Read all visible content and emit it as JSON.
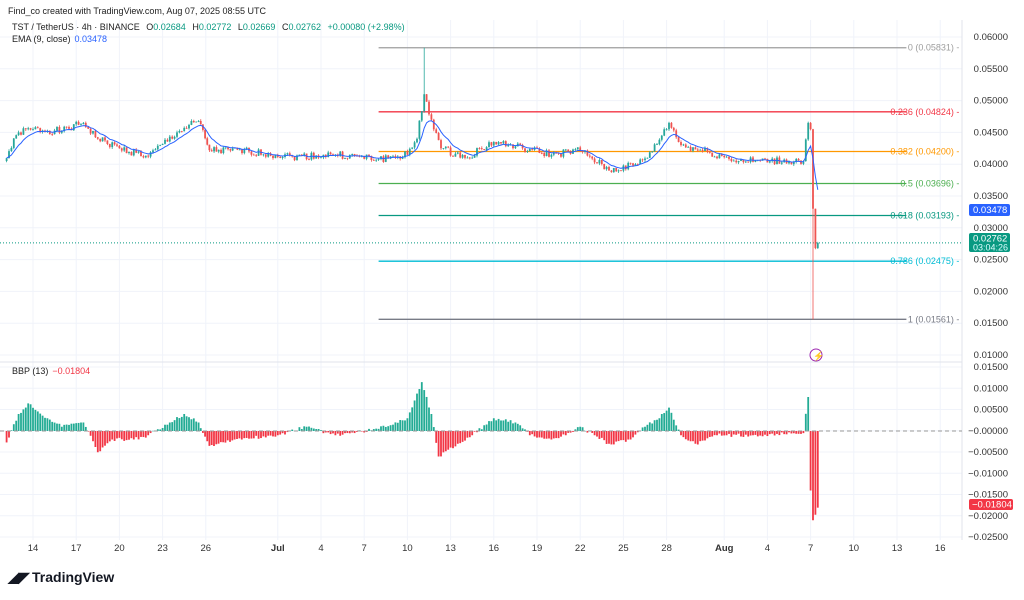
{
  "attribution": "Find_co created with TradingView.com, Aug 07, 2025 08:55 UTC",
  "logo": "TradingView",
  "legend": {
    "symbol": "TST / TetherUS · 4h · BINANCE",
    "o_label": "O",
    "o": "0.02684",
    "h_label": "H",
    "h": "0.02772",
    "l_label": "L",
    "l": "0.02669",
    "c_label": "C",
    "c": "0.02762",
    "change": "+0.00080 (+2.98%)",
    "ema_label": "EMA (9, close)",
    "ema_value": "0.03478",
    "bbp_label": "BBP (13)",
    "bbp_value": "−0.01804"
  },
  "colors": {
    "up": "#26a69a",
    "down": "#ef5350",
    "ema": "#2962ff",
    "bbp_up": "#22ab94",
    "bbp_down": "#f23645"
  },
  "chart_data": [
    {
      "type": "candlestick",
      "title": "TST / TetherUS · 4h · BINANCE",
      "ylim": [
        0.01,
        0.06
      ],
      "y_ticks": [
        "0.06000",
        "0.05500",
        "0.05000",
        "0.04500",
        "0.04000",
        "0.03500",
        "0.03000",
        "0.02500",
        "0.02000",
        "0.01500",
        "0.01000"
      ],
      "x_ticks": [
        {
          "label": "14",
          "date": "2025-06-14"
        },
        {
          "label": "17",
          "date": "2025-06-17"
        },
        {
          "label": "20",
          "date": "2025-06-20"
        },
        {
          "label": "23",
          "date": "2025-06-23"
        },
        {
          "label": "26",
          "date": "2025-06-26"
        },
        {
          "label": "Jul",
          "date": "2025-07-01"
        },
        {
          "label": "4",
          "date": "2025-07-04"
        },
        {
          "label": "7",
          "date": "2025-07-07"
        },
        {
          "label": "10",
          "date": "2025-07-10"
        },
        {
          "label": "13",
          "date": "2025-07-13"
        },
        {
          "label": "16",
          "date": "2025-07-16"
        },
        {
          "label": "19",
          "date": "2025-07-19"
        },
        {
          "label": "22",
          "date": "2025-07-22"
        },
        {
          "label": "25",
          "date": "2025-07-25"
        },
        {
          "label": "28",
          "date": "2025-07-28"
        },
        {
          "label": "Aug",
          "date": "2025-08-01"
        },
        {
          "label": "4",
          "date": "2025-08-04"
        },
        {
          "label": "7",
          "date": "2025-08-07"
        },
        {
          "label": "10",
          "date": "2025-08-10"
        },
        {
          "label": "13",
          "date": "2025-08-13"
        },
        {
          "label": "16",
          "date": "2025-08-16"
        }
      ],
      "closes": [
        [
          "2025-06-12T00",
          0.0405
        ],
        [
          "2025-06-13T00",
          0.045
        ],
        [
          "2025-06-14T00",
          0.0455
        ],
        [
          "2025-06-16T00",
          0.0452
        ],
        [
          "2025-06-17T12",
          0.0465
        ],
        [
          "2025-06-18T12",
          0.044
        ],
        [
          "2025-06-20T00",
          0.0425
        ],
        [
          "2025-06-22T00",
          0.0412
        ],
        [
          "2025-06-24T00",
          0.045
        ],
        [
          "2025-06-25T12",
          0.0468
        ],
        [
          "2025-06-26T06",
          0.0422
        ],
        [
          "2025-06-29T00",
          0.042
        ],
        [
          "2025-07-02T00",
          0.0412
        ],
        [
          "2025-07-05T00",
          0.0415
        ],
        [
          "2025-07-08T00",
          0.0408
        ],
        [
          "2025-07-10T00",
          0.0415
        ],
        [
          "2025-07-10T16",
          0.044
        ],
        [
          "2025-07-11T04",
          0.051
        ],
        [
          "2025-07-11T16",
          0.047
        ],
        [
          "2025-07-12T08",
          0.0425
        ],
        [
          "2025-07-14T00",
          0.041
        ],
        [
          "2025-07-16T00",
          0.0435
        ],
        [
          "2025-07-18T00",
          0.0425
        ],
        [
          "2025-07-20T00",
          0.0415
        ],
        [
          "2025-07-22T00",
          0.0422
        ],
        [
          "2025-07-24T00",
          0.039
        ],
        [
          "2025-07-26T00",
          0.04
        ],
        [
          "2025-07-27T00",
          0.042
        ],
        [
          "2025-07-28T04",
          0.0465
        ],
        [
          "2025-07-29T00",
          0.043
        ],
        [
          "2025-07-31T00",
          0.0418
        ],
        [
          "2025-08-02T00",
          0.0405
        ],
        [
          "2025-08-06T12",
          0.0405
        ],
        [
          "2025-08-06T20",
          0.0465
        ],
        [
          "2025-08-07T00",
          0.0455
        ],
        [
          "2025-08-07T04",
          0.033
        ],
        [
          "2025-08-07T08",
          0.0268
        ],
        [
          "2025-08-07T12",
          0.02762
        ]
      ],
      "extremes": [
        {
          "date": "2025-07-11",
          "high": 0.05831
        },
        {
          "date": "2025-08-07",
          "low": 0.01561
        }
      ],
      "last_price": "0.02762",
      "countdown": "03:04:26",
      "ema_last": "0.03478",
      "fib": {
        "start": "2025-07-08",
        "end": "2025-08-14",
        "levels": [
          {
            "label": "0 (0.05831)",
            "value": 0.05831,
            "color": "#9e9e9e"
          },
          {
            "label": "0.236 (0.04824)",
            "value": 0.04824,
            "color": "#f23645"
          },
          {
            "label": "0.382 (0.04200)",
            "value": 0.042,
            "color": "#ff9800"
          },
          {
            "label": "0.5 (0.03696)",
            "value": 0.03696,
            "color": "#4caf50"
          },
          {
            "label": "0.618 (0.03193)",
            "value": 0.03193,
            "color": "#089981"
          },
          {
            "label": "0.786 (0.02475)",
            "value": 0.02475,
            "color": "#00bcd4"
          },
          {
            "label": "1 (0.01561)",
            "value": 0.01561,
            "color": "#787b86"
          }
        ]
      }
    },
    {
      "type": "bar",
      "title": "BBP (13)",
      "ylim": [
        -0.025,
        0.015
      ],
      "y_ticks": [
        "0.01500",
        "0.01000",
        "0.00500",
        "−0.00000",
        "−0.00500",
        "−0.01000",
        "−0.01500",
        "−0.02000",
        "−0.02500"
      ],
      "last_value": "−0.01804",
      "values": [
        [
          "2025-06-12T00",
          -0.004
        ],
        [
          "2025-06-13T00",
          0.004
        ],
        [
          "2025-06-13T16",
          0.0065
        ],
        [
          "2025-06-15T00",
          0.003
        ],
        [
          "2025-06-16T00",
          0.001
        ],
        [
          "2025-06-17T12",
          0.002
        ],
        [
          "2025-06-18T12",
          -0.005
        ],
        [
          "2025-06-19T12",
          -0.002
        ],
        [
          "2025-06-21T00",
          -0.002
        ],
        [
          "2025-06-22T00",
          -0.001
        ],
        [
          "2025-06-23T12",
          0.002
        ],
        [
          "2025-06-24T12",
          0.004
        ],
        [
          "2025-06-25T12",
          0.002
        ],
        [
          "2025-06-26T06",
          -0.0035
        ],
        [
          "2025-06-28T00",
          -0.002
        ],
        [
          "2025-07-01T00",
          -0.001
        ],
        [
          "2025-07-03T00",
          0.001
        ],
        [
          "2025-07-05T00",
          -0.001
        ],
        [
          "2025-07-08T00",
          0.0005
        ],
        [
          "2025-07-10T00",
          0.003
        ],
        [
          "2025-07-11T00",
          0.0115
        ],
        [
          "2025-07-11T16",
          0.004
        ],
        [
          "2025-07-12T04",
          -0.006
        ],
        [
          "2025-07-13T12",
          -0.003
        ],
        [
          "2025-07-14T12",
          -0.001
        ],
        [
          "2025-07-16T00",
          0.003
        ],
        [
          "2025-07-17T12",
          0.002
        ],
        [
          "2025-07-18T12",
          -0.001
        ],
        [
          "2025-07-20T00",
          -0.002
        ],
        [
          "2025-07-21T00",
          -0.001
        ],
        [
          "2025-07-22T00",
          0.001
        ],
        [
          "2025-07-23T00",
          -0.001
        ],
        [
          "2025-07-24T00",
          -0.003
        ],
        [
          "2025-07-25T12",
          -0.002
        ],
        [
          "2025-07-26T12",
          0.001
        ],
        [
          "2025-07-27T12",
          0.003
        ],
        [
          "2025-07-28T04",
          0.0055
        ],
        [
          "2025-07-29T00",
          -0.001
        ],
        [
          "2025-07-30T00",
          -0.003
        ],
        [
          "2025-07-31T12",
          -0.001
        ],
        [
          "2025-08-03T00",
          -0.001
        ],
        [
          "2025-08-06T12",
          -0.0005
        ],
        [
          "2025-08-06T20",
          0.008
        ],
        [
          "2025-08-07T00",
          -0.014
        ],
        [
          "2025-08-07T04",
          -0.021
        ],
        [
          "2025-08-07T12",
          -0.01804
        ]
      ]
    }
  ]
}
